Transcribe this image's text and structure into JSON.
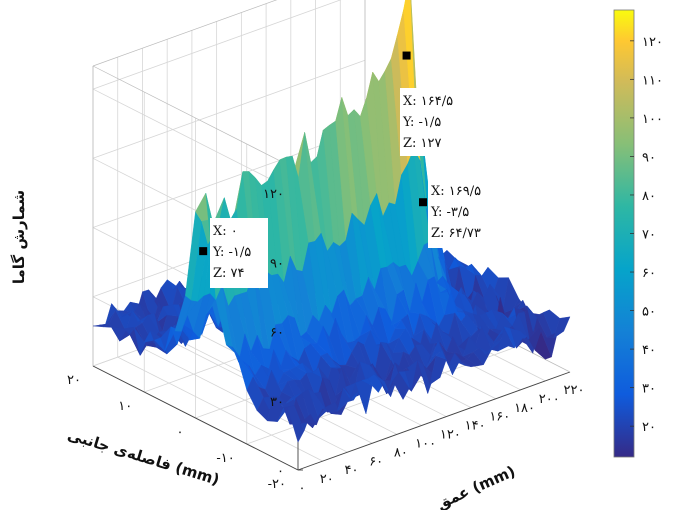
{
  "chart_data": {
    "type": "surface",
    "zlabel": "شمارش گاما",
    "xlabel": "عمق (mm)",
    "ylabel": "فاصله‌ی جانبی (mm)",
    "x_ticks": [
      "۰",
      "۲۰",
      "۴۰",
      "۶۰",
      "۸۰",
      "۱۰۰",
      "۱۲۰",
      "۱۴۰",
      "۱۶۰",
      "۱۸۰",
      "۲۰۰",
      "۲۲۰"
    ],
    "x_tick_values": [
      0,
      20,
      40,
      60,
      80,
      100,
      120,
      140,
      160,
      180,
      200,
      220
    ],
    "y_ticks": [
      "۲۰",
      "۱۰",
      "۰",
      "-۱۰",
      "-۲۰"
    ],
    "y_tick_values": [
      20,
      10,
      0,
      -10,
      -20
    ],
    "z_ticks": [
      "۰",
      "۳۰",
      "۶۰",
      "۹۰",
      "۱۲۰"
    ],
    "z_tick_values": [
      0,
      30,
      60,
      90,
      120
    ],
    "xlim": [
      0,
      220
    ],
    "ylim": [
      -20,
      20
    ],
    "zlim": [
      0,
      130
    ],
    "grid": true,
    "colormap": "parula",
    "colorbar": {
      "ticks": [
        "۲۰",
        "۳۰",
        "۴۰",
        "۵۰",
        "۶۰",
        "۷۰",
        "۸۰",
        "۹۰",
        "۱۰۰",
        "۱۱۰",
        "۱۲۰"
      ],
      "values": [
        20,
        30,
        40,
        50,
        60,
        70,
        80,
        90,
        100,
        110,
        120
      ],
      "range": [
        12,
        128
      ],
      "placement": "right"
    },
    "datatips": [
      {
        "x": 0,
        "y": -1.5,
        "z": 74,
        "lines": [
          "X: ۰",
          "Y: -۱/۵",
          "Z: ۷۴"
        ]
      },
      {
        "x": 164.5,
        "y": -1.5,
        "z": 127,
        "lines": [
          "X: ۱۶۴/۵",
          "Y: -۱/۵",
          "Z: ۱۲۷"
        ]
      },
      {
        "x": 169.5,
        "y": -3.5,
        "z": 64.73,
        "lines": [
          "X: ۱۶۹/۵",
          "Y: -۳/۵",
          "Z: ۶۴/۷۳"
        ]
      }
    ],
    "ridge_profile": {
      "y": -1.5,
      "x": [
        0,
        10,
        20,
        30,
        40,
        50,
        60,
        70,
        80,
        90,
        100,
        110,
        120,
        130,
        140,
        150,
        160,
        164.5,
        169.5,
        175,
        180,
        200,
        220
      ],
      "z": [
        74,
        66,
        66,
        67,
        68,
        70,
        72,
        73,
        75,
        77,
        79,
        81,
        84,
        86,
        90,
        96,
        110,
        127,
        64.73,
        58,
        40,
        30,
        25
      ]
    }
  }
}
